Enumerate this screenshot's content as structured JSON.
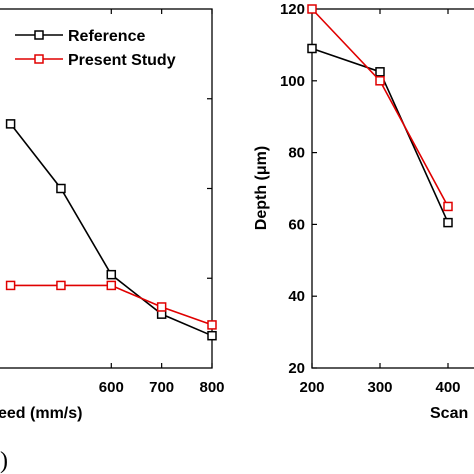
{
  "panel_tag": ")",
  "chart_data": [
    {
      "type": "line",
      "title": "",
      "xlabel": "eed (mm/s)",
      "ylabel": "",
      "xlim": [
        375,
        800
      ],
      "ylim": [
        0,
        1
      ],
      "x_ticks": [
        600,
        700,
        800
      ],
      "grid": false,
      "legend": "top-right",
      "series": [
        {
          "name": "Reference",
          "color": "#000000",
          "marker": "square",
          "x": [
            400,
            500,
            600,
            700,
            800
          ],
          "y": [
            0.68,
            0.5,
            0.26,
            0.15,
            0.09
          ]
        },
        {
          "name": "Present Study",
          "color": "#e00000",
          "marker": "square",
          "x": [
            400,
            500,
            600,
            700,
            800
          ],
          "y": [
            0.23,
            0.23,
            0.23,
            0.17,
            0.12
          ]
        }
      ]
    },
    {
      "type": "line",
      "title": "",
      "xlabel": "Scan",
      "ylabel": "Depth (μm)",
      "xlim": [
        200,
        450
      ],
      "ylim": [
        20,
        120
      ],
      "x_ticks": [
        200,
        300,
        400
      ],
      "x_tick_labels": [
        "200",
        "300",
        "400"
      ],
      "y_ticks": [
        20,
        40,
        60,
        80,
        100,
        120
      ],
      "grid": false,
      "series": [
        {
          "name": "Reference",
          "color": "#000000",
          "marker": "square",
          "x": [
            200,
            300,
            400
          ],
          "y": [
            109,
            102.5,
            60.5
          ]
        },
        {
          "name": "Present Study",
          "color": "#e00000",
          "marker": "square",
          "x": [
            200,
            300,
            400
          ],
          "y": [
            120,
            100,
            65
          ]
        }
      ]
    }
  ]
}
